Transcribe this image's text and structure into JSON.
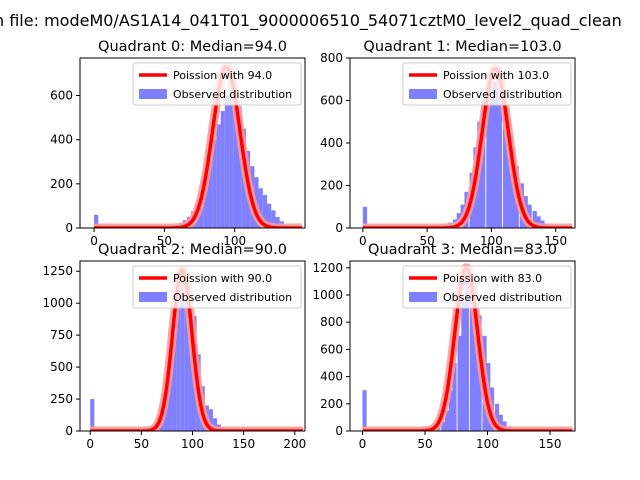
{
  "figure": {
    "suptitle": "n file: modeM0/AS1A14_041T01_9000006510_54071cztM0_level2_quad_clean"
  },
  "colors": {
    "bar": "#7f7fff",
    "curve": "#ff0000",
    "curve_glow": "#ff9999",
    "axis": "#000000",
    "background": "#ffffff"
  },
  "chart_data": [
    {
      "type": "bar",
      "title": "Quadrant 0: Median=94.0",
      "xlim": [
        -10,
        150
      ],
      "ylim": [
        0,
        770
      ],
      "xticks": [
        0,
        50,
        100
      ],
      "yticks": [
        0,
        200,
        400,
        600
      ],
      "bin_width": 3,
      "bins": [
        {
          "x": 0,
          "y": 60
        },
        {
          "x": 51,
          "y": 2
        },
        {
          "x": 54,
          "y": 5
        },
        {
          "x": 57,
          "y": 12
        },
        {
          "x": 60,
          "y": 22
        },
        {
          "x": 63,
          "y": 35
        },
        {
          "x": 66,
          "y": 50
        },
        {
          "x": 69,
          "y": 75
        },
        {
          "x": 72,
          "y": 110
        },
        {
          "x": 75,
          "y": 160
        },
        {
          "x": 78,
          "y": 240
        },
        {
          "x": 81,
          "y": 310
        },
        {
          "x": 84,
          "y": 400
        },
        {
          "x": 87,
          "y": 470
        },
        {
          "x": 90,
          "y": 530
        },
        {
          "x": 93,
          "y": 600
        },
        {
          "x": 96,
          "y": 640
        },
        {
          "x": 99,
          "y": 580
        },
        {
          "x": 102,
          "y": 550
        },
        {
          "x": 105,
          "y": 450
        },
        {
          "x": 108,
          "y": 350
        },
        {
          "x": 111,
          "y": 280
        },
        {
          "x": 114,
          "y": 230
        },
        {
          "x": 117,
          "y": 180
        },
        {
          "x": 120,
          "y": 150
        },
        {
          "x": 123,
          "y": 110
        },
        {
          "x": 126,
          "y": 80
        },
        {
          "x": 129,
          "y": 50
        },
        {
          "x": 132,
          "y": 30
        },
        {
          "x": 135,
          "y": 15
        },
        {
          "x": 138,
          "y": 5
        }
      ],
      "curve": {
        "lambda": 94.0,
        "peak": 730,
        "label": "Poission with 94.0"
      },
      "legend": {
        "line_label": "Poission with 94.0",
        "bar_label": "Observed distribution"
      }
    },
    {
      "type": "bar",
      "title": "Quadrant 1: Median=103.0",
      "xlim": [
        -10,
        165
      ],
      "ylim": [
        0,
        800
      ],
      "xticks": [
        0,
        50,
        100,
        150
      ],
      "yticks": [
        0,
        200,
        400,
        600,
        800
      ],
      "bin_width": 3.3,
      "bins": [
        {
          "x": 0,
          "y": 100
        },
        {
          "x": 56,
          "y": 3
        },
        {
          "x": 60,
          "y": 8
        },
        {
          "x": 63,
          "y": 15
        },
        {
          "x": 66,
          "y": 25
        },
        {
          "x": 70,
          "y": 40
        },
        {
          "x": 73,
          "y": 70
        },
        {
          "x": 76,
          "y": 110
        },
        {
          "x": 79,
          "y": 170
        },
        {
          "x": 83,
          "y": 260
        },
        {
          "x": 86,
          "y": 380
        },
        {
          "x": 89,
          "y": 500
        },
        {
          "x": 92,
          "y": 600
        },
        {
          "x": 96,
          "y": 680
        },
        {
          "x": 99,
          "y": 700
        },
        {
          "x": 102,
          "y": 690
        },
        {
          "x": 105,
          "y": 640
        },
        {
          "x": 109,
          "y": 560
        },
        {
          "x": 112,
          "y": 470
        },
        {
          "x": 115,
          "y": 380
        },
        {
          "x": 118,
          "y": 290
        },
        {
          "x": 122,
          "y": 210
        },
        {
          "x": 125,
          "y": 150
        },
        {
          "x": 128,
          "y": 110
        },
        {
          "x": 132,
          "y": 80
        },
        {
          "x": 135,
          "y": 55
        },
        {
          "x": 138,
          "y": 35
        },
        {
          "x": 141,
          "y": 20
        },
        {
          "x": 145,
          "y": 10
        },
        {
          "x": 148,
          "y": 5
        }
      ],
      "curve": {
        "lambda": 103.0,
        "peak": 750,
        "label": "Poission with 103.0"
      },
      "legend": {
        "line_label": "Poission with 103.0",
        "bar_label": "Observed distribution"
      }
    },
    {
      "type": "bar",
      "title": "Quadrant 2: Median=90.0",
      "xlim": [
        -10,
        210
      ],
      "ylim": [
        0,
        1330
      ],
      "xticks": [
        0,
        50,
        100,
        150,
        200
      ],
      "yticks": [
        0,
        250,
        500,
        750,
        1000,
        1250
      ],
      "bin_width": 4,
      "bins": [
        {
          "x": 0,
          "y": 250
        },
        {
          "x": 52,
          "y": 3
        },
        {
          "x": 56,
          "y": 10
        },
        {
          "x": 60,
          "y": 30
        },
        {
          "x": 64,
          "y": 70
        },
        {
          "x": 68,
          "y": 150
        },
        {
          "x": 72,
          "y": 300
        },
        {
          "x": 76,
          "y": 500
        },
        {
          "x": 80,
          "y": 750
        },
        {
          "x": 84,
          "y": 1000
        },
        {
          "x": 88,
          "y": 1150
        },
        {
          "x": 92,
          "y": 1200
        },
        {
          "x": 96,
          "y": 1100
        },
        {
          "x": 100,
          "y": 900
        },
        {
          "x": 104,
          "y": 600
        },
        {
          "x": 108,
          "y": 350
        },
        {
          "x": 112,
          "y": 200
        },
        {
          "x": 116,
          "y": 170
        },
        {
          "x": 120,
          "y": 100
        },
        {
          "x": 124,
          "y": 50
        },
        {
          "x": 128,
          "y": 20
        },
        {
          "x": 132,
          "y": 8
        }
      ],
      "curve": {
        "lambda": 90.0,
        "peak": 1260,
        "label": "Poission with 90.0"
      },
      "legend": {
        "line_label": "Poission with 90.0",
        "bar_label": "Observed distribution"
      }
    },
    {
      "type": "bar",
      "title": "Quadrant 3: Median=83.0",
      "xlim": [
        -10,
        170
      ],
      "ylim": [
        0,
        1250
      ],
      "xticks": [
        0,
        50,
        100,
        150
      ],
      "yticks": [
        0,
        200,
        400,
        600,
        800,
        1000,
        1200
      ],
      "bin_width": 3.3,
      "bins": [
        {
          "x": 0,
          "y": 300
        },
        {
          "x": 53,
          "y": 5
        },
        {
          "x": 56,
          "y": 15
        },
        {
          "x": 59,
          "y": 35
        },
        {
          "x": 63,
          "y": 70
        },
        {
          "x": 66,
          "y": 150
        },
        {
          "x": 69,
          "y": 300
        },
        {
          "x": 72,
          "y": 500
        },
        {
          "x": 76,
          "y": 700
        },
        {
          "x": 79,
          "y": 950
        },
        {
          "x": 82,
          "y": 1100
        },
        {
          "x": 86,
          "y": 1050
        },
        {
          "x": 89,
          "y": 950
        },
        {
          "x": 92,
          "y": 850
        },
        {
          "x": 96,
          "y": 700
        },
        {
          "x": 99,
          "y": 500
        },
        {
          "x": 102,
          "y": 320
        },
        {
          "x": 106,
          "y": 200
        },
        {
          "x": 109,
          "y": 120
        },
        {
          "x": 112,
          "y": 70
        },
        {
          "x": 116,
          "y": 35
        },
        {
          "x": 119,
          "y": 15
        },
        {
          "x": 122,
          "y": 5
        }
      ],
      "curve": {
        "lambda": 83.0,
        "peak": 1200,
        "label": "Poission with 83.0"
      },
      "legend": {
        "line_label": "Poission with 83.0",
        "bar_label": "Observed distribution"
      }
    }
  ]
}
